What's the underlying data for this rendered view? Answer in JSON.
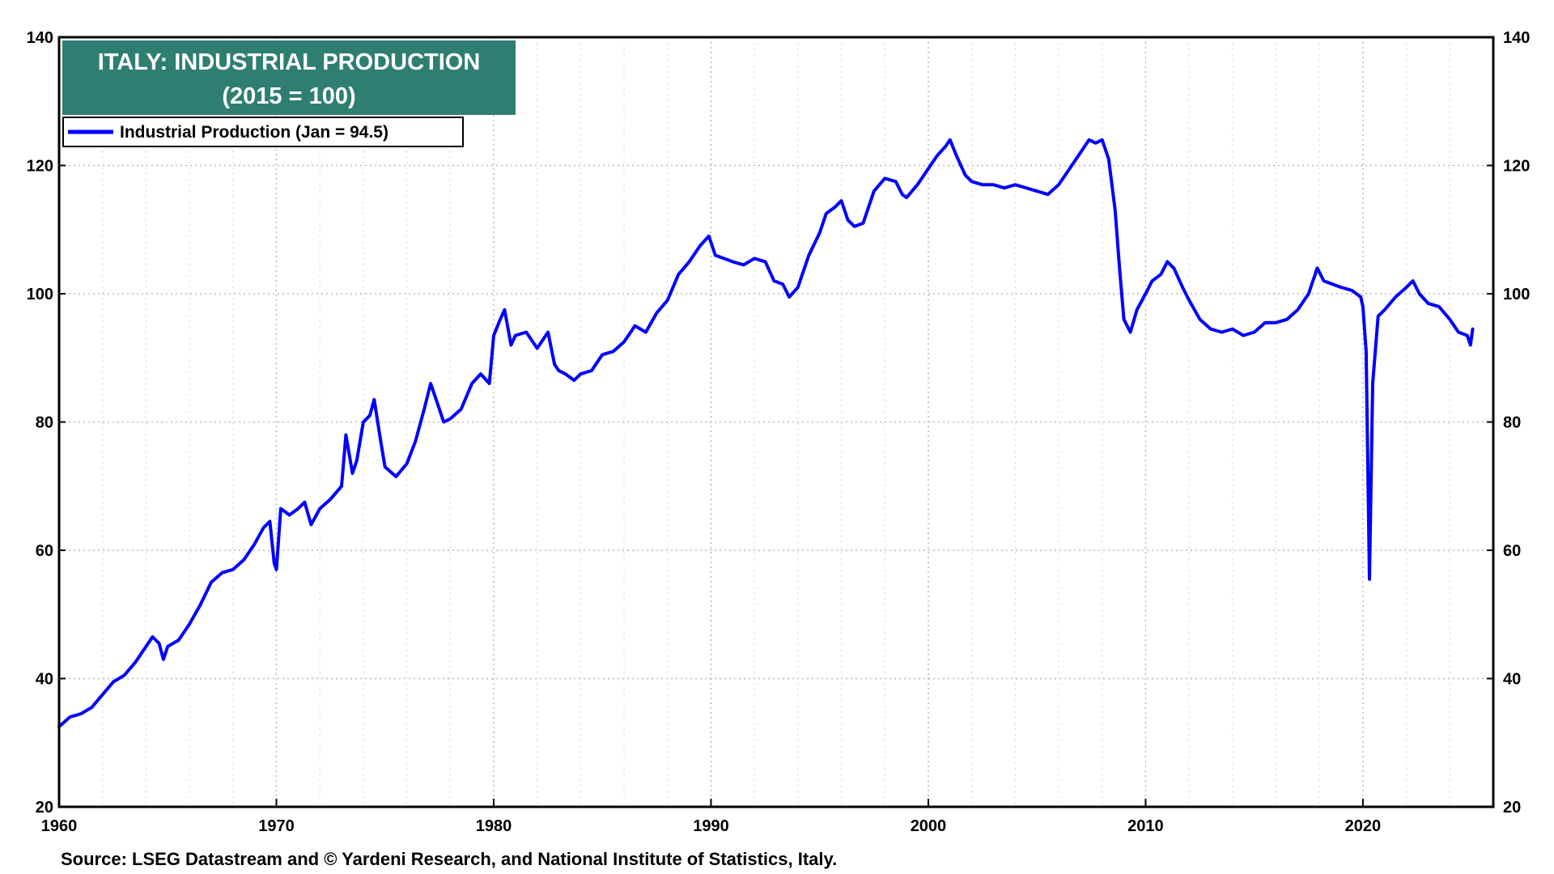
{
  "chart_data": {
    "type": "line",
    "title": "ITALY: INDUSTRIAL PRODUCTION",
    "subtitle": "(2015 = 100)",
    "source": "Source: LSEG Datastream and © Yardeni Research, and National Institute of Statistics, Italy.",
    "legend_position": "top-left",
    "grid": true,
    "xlim": [
      1960,
      2026
    ],
    "ylim": [
      20,
      140
    ],
    "x_ticks": [
      "1960",
      "1970",
      "1980",
      "1990",
      "2000",
      "2010",
      "2020"
    ],
    "y_ticks": [
      "20",
      "40",
      "60",
      "80",
      "100",
      "120",
      "140"
    ],
    "series": [
      {
        "name": "Industrial Production (Jan = 94.5)",
        "color": "#0000ff",
        "points": [
          [
            1960.0,
            32.5
          ],
          [
            1960.5,
            34.0
          ],
          [
            1961.0,
            34.5
          ],
          [
            1961.5,
            35.5
          ],
          [
            1962.0,
            37.5
          ],
          [
            1962.5,
            39.5
          ],
          [
            1963.0,
            40.5
          ],
          [
            1963.5,
            42.5
          ],
          [
            1964.0,
            45.0
          ],
          [
            1964.3,
            46.5
          ],
          [
            1964.6,
            45.5
          ],
          [
            1964.8,
            43.0
          ],
          [
            1965.0,
            45.0
          ],
          [
            1965.5,
            46.0
          ],
          [
            1966.0,
            48.5
          ],
          [
            1966.5,
            51.5
          ],
          [
            1967.0,
            55.0
          ],
          [
            1967.5,
            56.5
          ],
          [
            1968.0,
            57.0
          ],
          [
            1968.5,
            58.5
          ],
          [
            1969.0,
            61.0
          ],
          [
            1969.4,
            63.5
          ],
          [
            1969.7,
            64.5
          ],
          [
            1969.9,
            58.0
          ],
          [
            1970.0,
            57.0
          ],
          [
            1970.2,
            66.5
          ],
          [
            1970.6,
            65.5
          ],
          [
            1971.0,
            66.5
          ],
          [
            1971.3,
            67.5
          ],
          [
            1971.6,
            64.0
          ],
          [
            1972.0,
            66.5
          ],
          [
            1972.5,
            68.0
          ],
          [
            1973.0,
            70.0
          ],
          [
            1973.2,
            78.0
          ],
          [
            1973.5,
            72.0
          ],
          [
            1973.7,
            74.0
          ],
          [
            1974.0,
            80.0
          ],
          [
            1974.3,
            81.0
          ],
          [
            1974.5,
            83.5
          ],
          [
            1974.8,
            77.0
          ],
          [
            1975.0,
            73.0
          ],
          [
            1975.5,
            71.5
          ],
          [
            1976.0,
            73.5
          ],
          [
            1976.4,
            77.0
          ],
          [
            1976.8,
            82.0
          ],
          [
            1977.1,
            86.0
          ],
          [
            1977.4,
            83.0
          ],
          [
            1977.7,
            80.0
          ],
          [
            1978.0,
            80.5
          ],
          [
            1978.5,
            82.0
          ],
          [
            1979.0,
            86.0
          ],
          [
            1979.4,
            87.5
          ],
          [
            1979.8,
            86.0
          ],
          [
            1980.0,
            93.5
          ],
          [
            1980.3,
            96.0
          ],
          [
            1980.5,
            97.5
          ],
          [
            1980.8,
            92.0
          ],
          [
            1981.0,
            93.5
          ],
          [
            1981.5,
            94.0
          ],
          [
            1982.0,
            91.5
          ],
          [
            1982.5,
            94.0
          ],
          [
            1982.8,
            89.0
          ],
          [
            1983.0,
            88.0
          ],
          [
            1983.3,
            87.5
          ],
          [
            1983.7,
            86.5
          ],
          [
            1984.0,
            87.5
          ],
          [
            1984.5,
            88.0
          ],
          [
            1985.0,
            90.5
          ],
          [
            1985.5,
            91.0
          ],
          [
            1986.0,
            92.5
          ],
          [
            1986.5,
            95.0
          ],
          [
            1987.0,
            94.0
          ],
          [
            1987.5,
            97.0
          ],
          [
            1988.0,
            99.0
          ],
          [
            1988.5,
            103.0
          ],
          [
            1989.0,
            105.0
          ],
          [
            1989.5,
            107.5
          ],
          [
            1989.9,
            109.0
          ],
          [
            1990.2,
            106.0
          ],
          [
            1990.6,
            105.5
          ],
          [
            1991.0,
            105.0
          ],
          [
            1991.5,
            104.5
          ],
          [
            1992.0,
            105.5
          ],
          [
            1992.5,
            105.0
          ],
          [
            1992.9,
            102.0
          ],
          [
            1993.3,
            101.5
          ],
          [
            1993.6,
            99.5
          ],
          [
            1994.0,
            101.0
          ],
          [
            1994.5,
            106.0
          ],
          [
            1995.0,
            109.5
          ],
          [
            1995.3,
            112.5
          ],
          [
            1995.7,
            113.5
          ],
          [
            1996.0,
            114.5
          ],
          [
            1996.3,
            111.5
          ],
          [
            1996.6,
            110.5
          ],
          [
            1997.0,
            111.0
          ],
          [
            1997.5,
            116.0
          ],
          [
            1998.0,
            118.0
          ],
          [
            1998.5,
            117.5
          ],
          [
            1998.8,
            115.5
          ],
          [
            1999.0,
            115.0
          ],
          [
            1999.5,
            117.0
          ],
          [
            2000.0,
            119.5
          ],
          [
            2000.4,
            121.5
          ],
          [
            2000.8,
            123.0
          ],
          [
            2001.0,
            124.0
          ],
          [
            2001.3,
            121.5
          ],
          [
            2001.7,
            118.5
          ],
          [
            2002.0,
            117.5
          ],
          [
            2002.5,
            117.0
          ],
          [
            2003.0,
            117.0
          ],
          [
            2003.5,
            116.5
          ],
          [
            2004.0,
            117.0
          ],
          [
            2004.5,
            116.5
          ],
          [
            2005.0,
            116.0
          ],
          [
            2005.5,
            115.5
          ],
          [
            2006.0,
            117.0
          ],
          [
            2006.5,
            119.5
          ],
          [
            2007.0,
            122.0
          ],
          [
            2007.4,
            124.0
          ],
          [
            2007.7,
            123.5
          ],
          [
            2008.0,
            124.0
          ],
          [
            2008.3,
            121.0
          ],
          [
            2008.6,
            113.0
          ],
          [
            2008.8,
            104.0
          ],
          [
            2009.0,
            96.0
          ],
          [
            2009.3,
            94.0
          ],
          [
            2009.6,
            97.5
          ],
          [
            2010.0,
            100.0
          ],
          [
            2010.3,
            102.0
          ],
          [
            2010.7,
            103.0
          ],
          [
            2011.0,
            105.0
          ],
          [
            2011.3,
            104.0
          ],
          [
            2011.7,
            101.0
          ],
          [
            2012.0,
            99.0
          ],
          [
            2012.5,
            96.0
          ],
          [
            2013.0,
            94.5
          ],
          [
            2013.5,
            94.0
          ],
          [
            2014.0,
            94.5
          ],
          [
            2014.5,
            93.5
          ],
          [
            2015.0,
            94.0
          ],
          [
            2015.5,
            95.5
          ],
          [
            2016.0,
            95.5
          ],
          [
            2016.5,
            96.0
          ],
          [
            2017.0,
            97.5
          ],
          [
            2017.5,
            100.0
          ],
          [
            2017.9,
            104.0
          ],
          [
            2018.2,
            102.0
          ],
          [
            2018.6,
            101.5
          ],
          [
            2019.0,
            101.0
          ],
          [
            2019.5,
            100.5
          ],
          [
            2019.9,
            99.5
          ],
          [
            2020.0,
            98.0
          ],
          [
            2020.15,
            91.0
          ],
          [
            2020.3,
            55.5
          ],
          [
            2020.45,
            86.0
          ],
          [
            2020.7,
            96.5
          ],
          [
            2021.0,
            97.5
          ],
          [
            2021.5,
            99.5
          ],
          [
            2022.0,
            101.0
          ],
          [
            2022.3,
            102.0
          ],
          [
            2022.6,
            100.0
          ],
          [
            2023.0,
            98.5
          ],
          [
            2023.5,
            98.0
          ],
          [
            2024.0,
            96.0
          ],
          [
            2024.4,
            94.0
          ],
          [
            2024.8,
            93.5
          ],
          [
            2024.95,
            92.0
          ],
          [
            2025.05,
            94.5
          ]
        ]
      }
    ]
  }
}
